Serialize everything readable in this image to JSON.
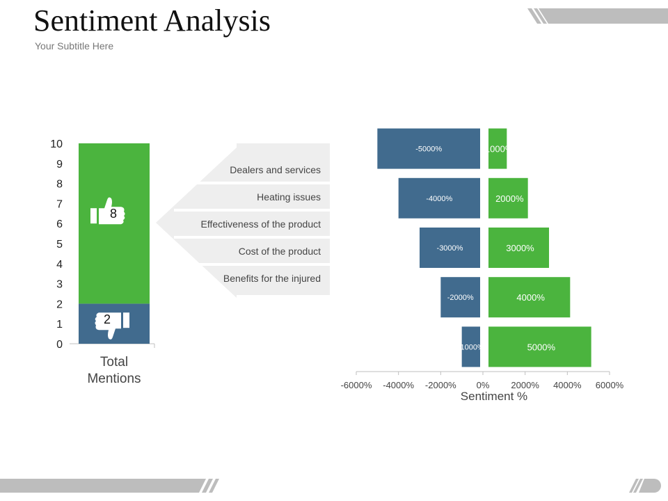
{
  "header": {
    "title": "Sentiment Analysis",
    "subtitle": "Your Subtitle Here"
  },
  "colors": {
    "positive": "#4BB43E",
    "negative": "#416B8E",
    "arrow_bg": "#EEEEEE",
    "deco_gray": "#BDBDBD"
  },
  "icons": {
    "thumbs_up": "thumbs-up-icon",
    "thumbs_down": "thumbs-down-icon"
  },
  "chart_data": [
    {
      "type": "bar",
      "stacked": true,
      "categories": [
        "Total Mentions"
      ],
      "series": [
        {
          "name": "",
          "values": [
            2
          ],
          "color": "#416B8E"
        },
        {
          "name": "",
          "values": [
            8
          ],
          "color": "#4BB43E"
        }
      ],
      "data_labels": [
        "2",
        "8"
      ],
      "ylim": [
        0,
        10
      ],
      "yticks": [
        "0",
        "1",
        "2",
        "3",
        "4",
        "5",
        "6",
        "7",
        "8",
        "9",
        "10"
      ],
      "xlabel": "",
      "ylabel": "",
      "title": ""
    },
    {
      "type": "bar",
      "orientation": "horizontal",
      "rows": [
        {
          "negative": -5000,
          "positive": 1000,
          "neg_label": "-5000%",
          "pos_label": "1000%"
        },
        {
          "negative": -4000,
          "positive": 2000,
          "neg_label": "-4000%",
          "pos_label": "2000%"
        },
        {
          "negative": -3000,
          "positive": 3000,
          "neg_label": "-3000%",
          "pos_label": "3000%"
        },
        {
          "negative": -2000,
          "positive": 4000,
          "neg_label": "-2000%",
          "pos_label": "4000%"
        },
        {
          "negative": -1000,
          "positive": 5000,
          "neg_label": "-1000%",
          "pos_label": "5000%"
        }
      ],
      "xlim": [
        -6000,
        6000
      ],
      "xticks": [
        -6000,
        -4000,
        -2000,
        0,
        2000,
        4000,
        6000
      ],
      "xtick_labels": [
        "-6000%",
        "-4000%",
        "-2000%",
        "0%",
        "2000%",
        "4000%",
        "6000%"
      ],
      "xlabel": "Sentiment %",
      "title": ""
    }
  ],
  "arrow_labels": [
    "Dealers and services",
    "Heating issues",
    "Effectiveness of the product",
    "Cost of the product",
    "Benefits for the injured"
  ],
  "left_axis_label_lines": [
    "Total",
    "Mentions"
  ]
}
